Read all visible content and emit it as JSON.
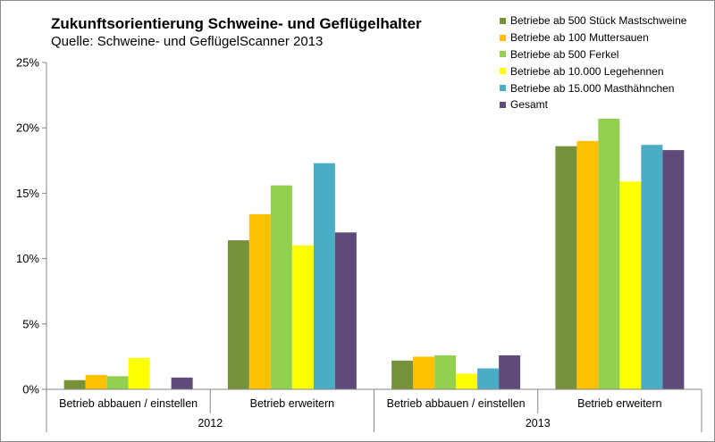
{
  "chart_data": {
    "type": "bar",
    "title": "Zukunftsorientierung Schweine- und Geflügelhalter",
    "subtitle": "Quelle: Schweine- und GeflügelScanner 2013",
    "groups": [
      "2012",
      "2013"
    ],
    "categories": [
      "Betrieb abbauen / einstellen",
      "Betrieb erweitern",
      "Betrieb abbauen / einstellen",
      "Betrieb erweitern"
    ],
    "category_group": [
      0,
      0,
      1,
      1
    ],
    "y_ticks": [
      "0%",
      "5%",
      "10%",
      "15%",
      "20%",
      "25%"
    ],
    "ylim": [
      0,
      25
    ],
    "grid": false,
    "legend_position": "top-right",
    "series": [
      {
        "name": "Betriebe ab 500 Stück Mastschweine",
        "color": "#76933c",
        "values": [
          0.7,
          11.4,
          2.2,
          18.6
        ]
      },
      {
        "name": "Betriebe ab 100 Muttersauen",
        "color": "#ffc000",
        "values": [
          1.1,
          13.4,
          2.5,
          19.0
        ]
      },
      {
        "name": "Betriebe ab 500 Ferkel",
        "color": "#92d050",
        "values": [
          1.0,
          15.6,
          2.6,
          20.7
        ]
      },
      {
        "name": "Betriebe ab 10.000 Legehennen",
        "color": "#ffff00",
        "values": [
          2.4,
          11.0,
          1.2,
          15.9
        ]
      },
      {
        "name": "Betriebe ab 15.000 Masthähnchen",
        "color": "#4bacc6",
        "values": [
          0,
          17.3,
          1.6,
          18.7
        ]
      },
      {
        "name": "Gesamt",
        "color": "#604a7b",
        "values": [
          0.9,
          12.0,
          2.6,
          18.3
        ]
      }
    ]
  }
}
